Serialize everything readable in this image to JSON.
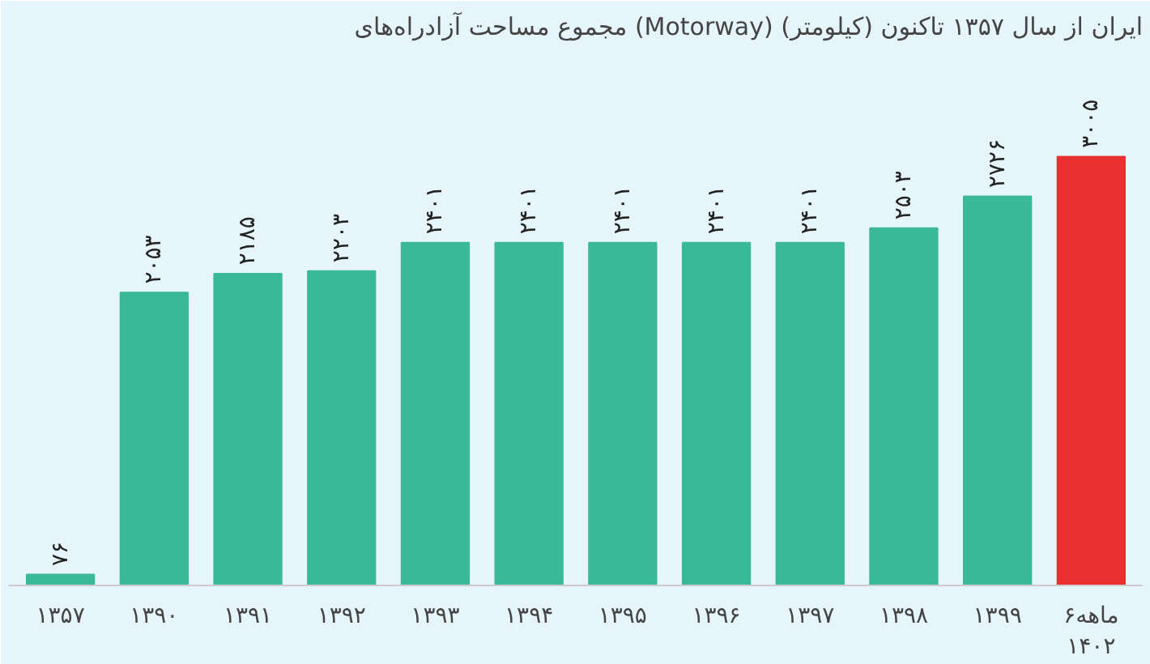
{
  "chart_data": {
    "type": "bar",
    "title": "مجموع مساحت آزادراه‌های (Motorway) ایران از سال ۱۳۵۷ تاکنون (کیلومتر)",
    "categories": [
      "۱۳۵۷",
      "۱۳۹۰",
      "۱۳۹۱",
      "۱۳۹۲",
      "۱۳۹۳",
      "۱۳۹۴",
      "۱۳۹۵",
      "۱۳۹۶",
      "۱۳۹۷",
      "۱۳۹۸",
      "۱۳۹۹",
      "۶ماهه\n۱۴۰۲"
    ],
    "values": [
      76,
      2053,
      2185,
      2203,
      2401,
      2401,
      2401,
      2401,
      2401,
      2503,
      2726,
      3005
    ],
    "value_labels": [
      "۷۶",
      "۲۰۵۳",
      "۲۱۸۵",
      "۲۲۰۳",
      "۲۴۰۱",
      "۲۴۰۱",
      "۲۴۰۱",
      "۲۴۰۱",
      "۲۴۰۱",
      "۲۵۰۳",
      "۲۷۲۶",
      "۳۰۰۵"
    ],
    "colors": [
      "#3ab99a",
      "#3ab99a",
      "#3ab99a",
      "#3ab99a",
      "#3ab99a",
      "#3ab99a",
      "#3ab99a",
      "#3ab99a",
      "#3ab99a",
      "#3ab99a",
      "#3ab99a",
      "#e8312f"
    ],
    "grid": false
  }
}
